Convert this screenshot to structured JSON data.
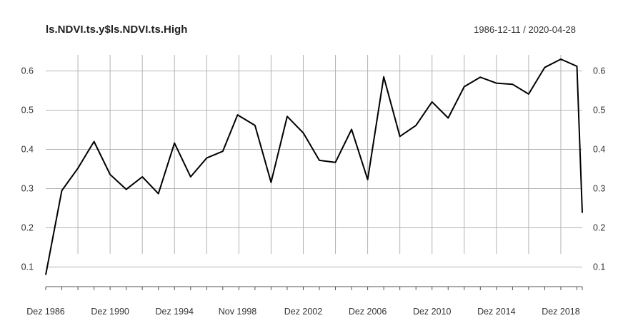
{
  "chart_data": {
    "type": "line",
    "title": "ls.NDVI.ts.y$ls.NDVI.ts.High",
    "date_range": "1986-12-11 / 2020-04-28",
    "ylim": [
      0.05,
      0.65
    ],
    "y_ticks": [
      0.1,
      0.2,
      0.3,
      0.4,
      0.5,
      0.6
    ],
    "y_tick_labels": [
      "0.1",
      "0.2",
      "0.3",
      "0.4",
      "0.5",
      "0.6"
    ],
    "x_tick_labels": [
      "Dez 1986",
      "Dez 1990",
      "Dez 1994",
      "Nov 1998",
      "Dez 2002",
      "Dez 2006",
      "Dez 2010",
      "Dez 2014",
      "Dez 2018"
    ],
    "grid": true,
    "series": [
      {
        "x": [
          "1986-12",
          "1987-12",
          "1988-12",
          "1989-12",
          "1990-12",
          "1991-12",
          "1992-12",
          "1993-12",
          "1994-12",
          "1995-12",
          "1996-12",
          "1997-12",
          "1998-11",
          "1999-12",
          "2000-12",
          "2001-12",
          "2002-12",
          "2003-12",
          "2004-12",
          "2005-12",
          "2006-12",
          "2007-12",
          "2008-12",
          "2009-12",
          "2010-12",
          "2011-12",
          "2012-12",
          "2013-12",
          "2014-12",
          "2015-12",
          "2016-12",
          "2017-12",
          "2018-12",
          "2019-12",
          "2020-04"
        ],
        "values": [
          0.08,
          0.295,
          0.352,
          0.42,
          0.336,
          0.298,
          0.33,
          0.287,
          0.416,
          0.33,
          0.378,
          0.395,
          0.488,
          0.461,
          0.316,
          0.484,
          0.442,
          0.372,
          0.367,
          0.451,
          0.323,
          0.585,
          0.433,
          0.461,
          0.521,
          0.48,
          0.56,
          0.584,
          0.569,
          0.566,
          0.541,
          0.609,
          0.63,
          0.612,
          0.238
        ]
      }
    ]
  }
}
